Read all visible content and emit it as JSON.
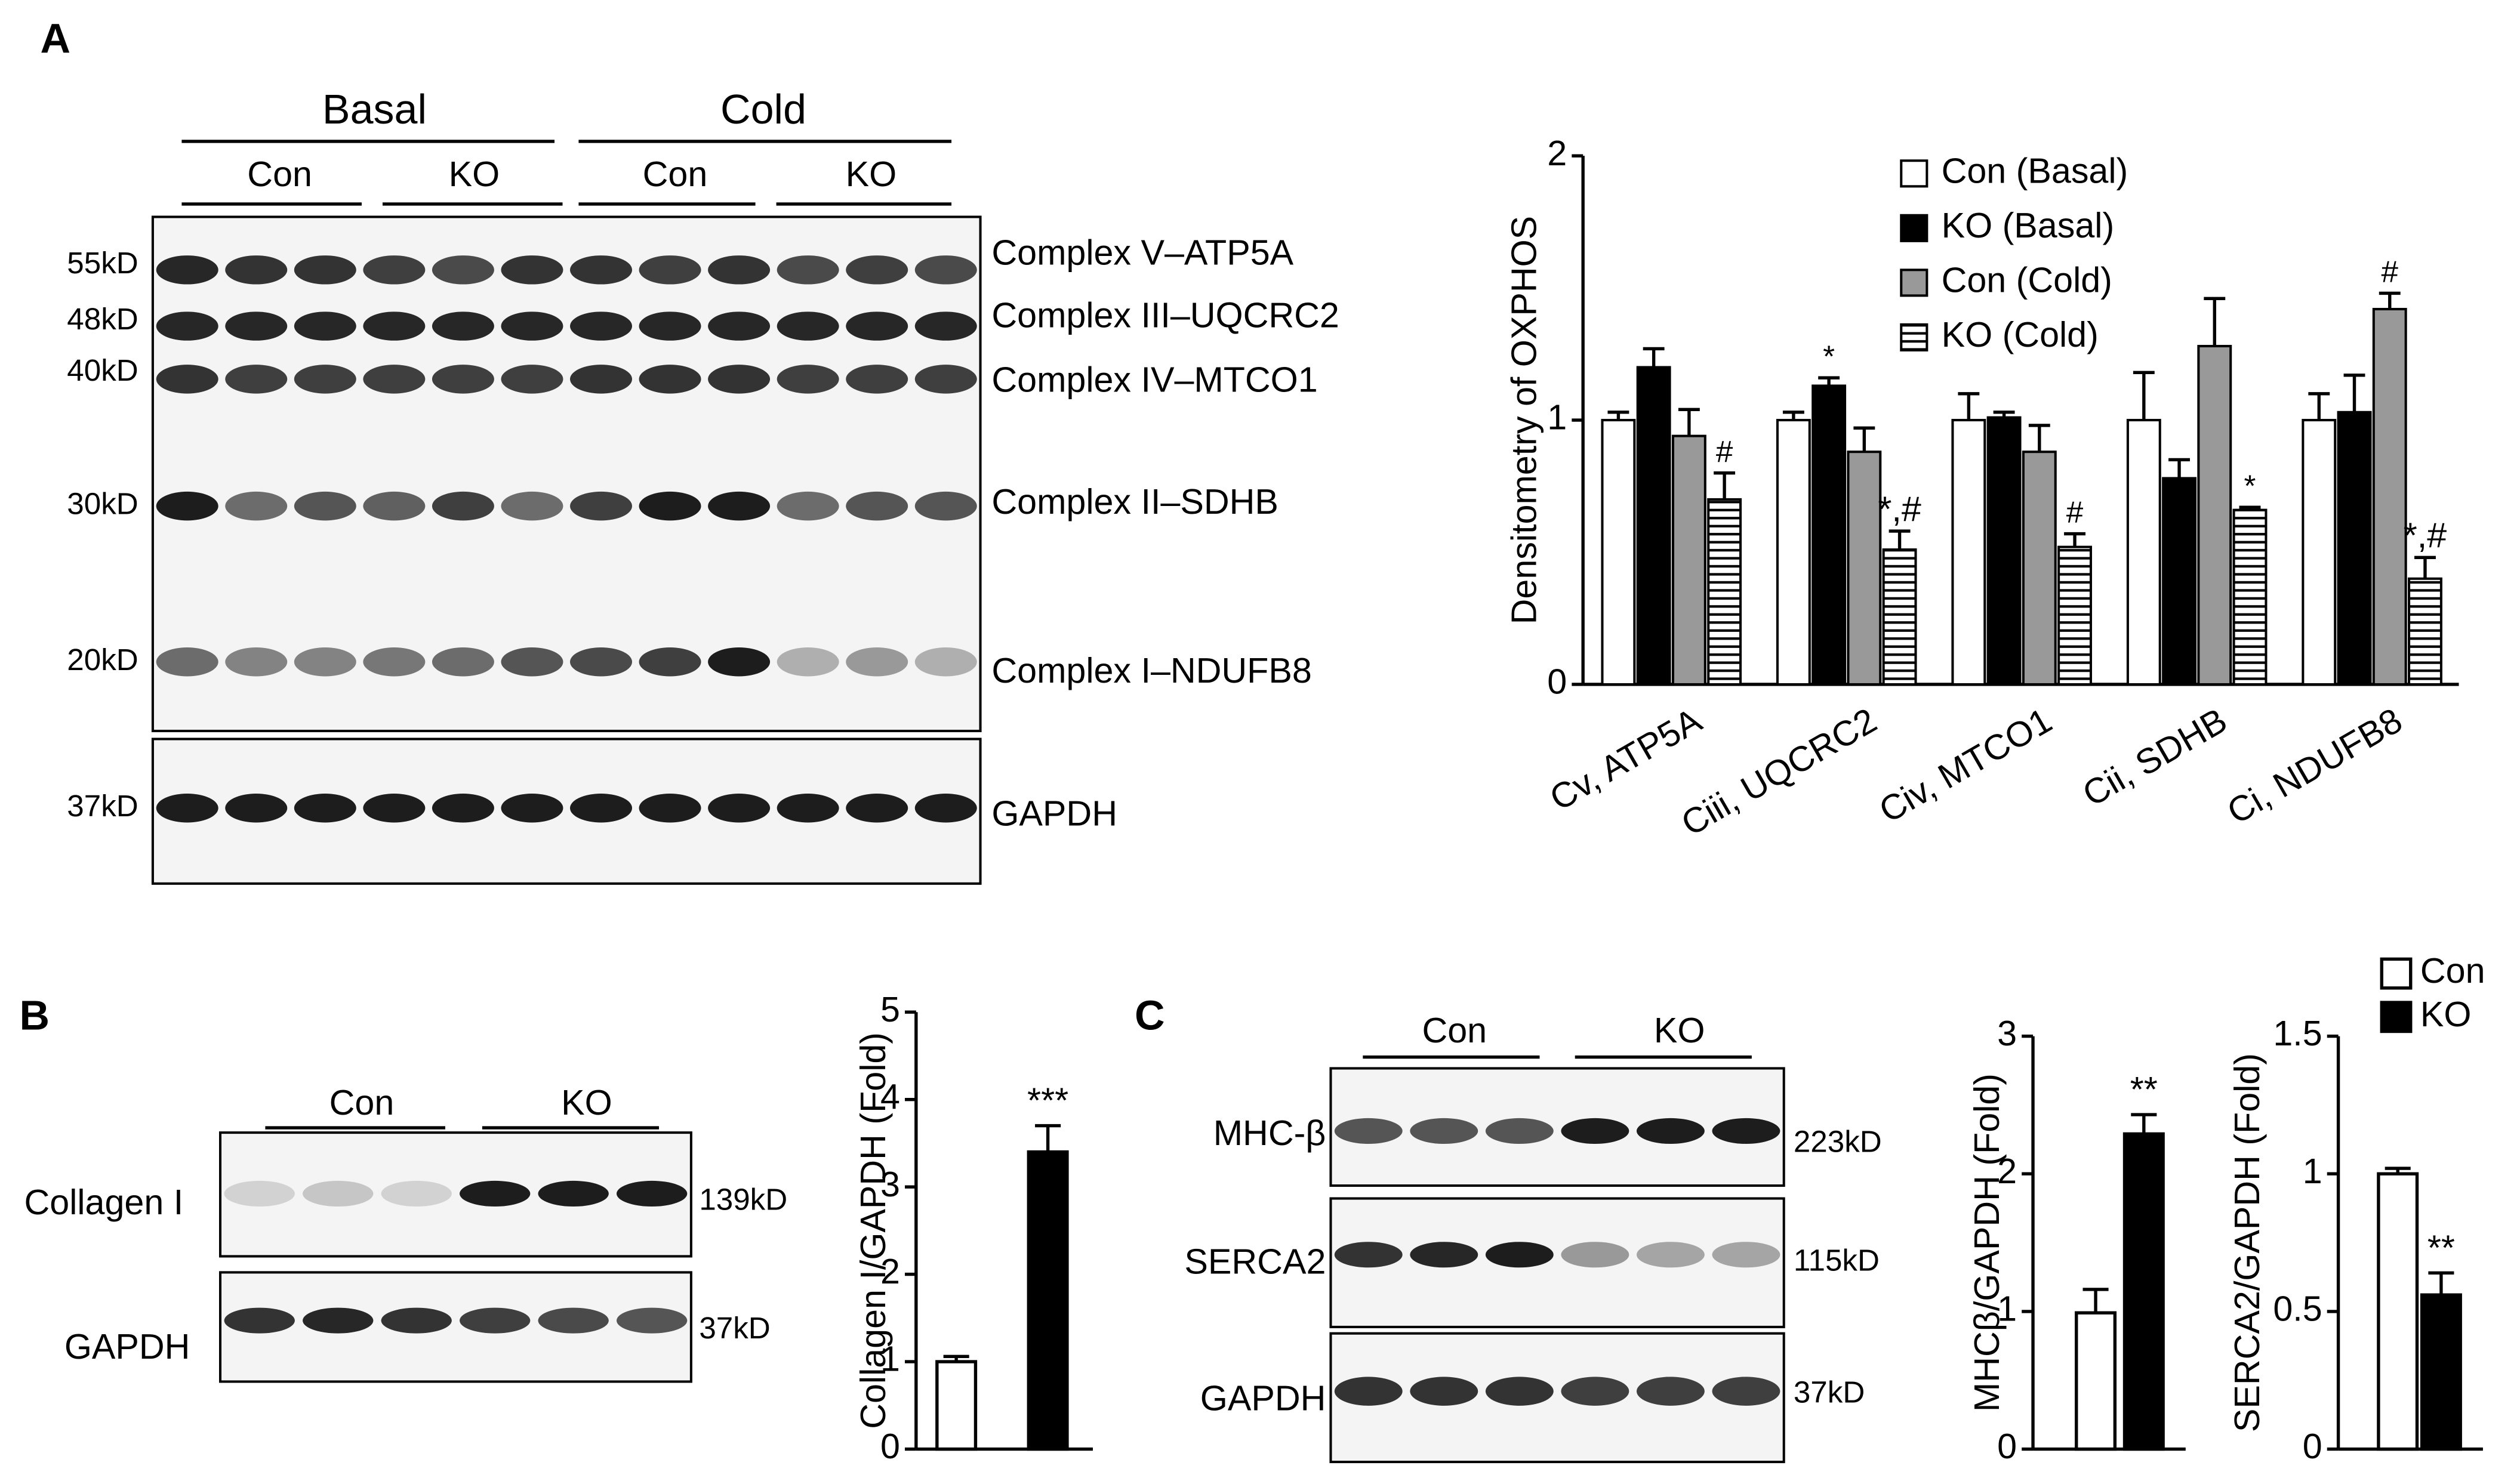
{
  "panel_labels": [
    "A",
    "B",
    "C"
  ],
  "blot_a": {
    "groups": [
      "Basal",
      "Cold"
    ],
    "subgroups": [
      "Con",
      "KO",
      "Con",
      "KO"
    ],
    "markers": [
      "55kD",
      "48kD",
      "40kD",
      "30kD",
      "20kD",
      "37kD"
    ],
    "bands": [
      "Complex V–ATP5A",
      "Complex III–UQCRC2",
      "Complex IV–MTCO1",
      "Complex II–SDHB",
      "Complex I–NDUFB8",
      "GAPDH"
    ]
  },
  "blot_b": {
    "groups": [
      "Con",
      "KO"
    ],
    "rows": [
      "Collagen I",
      "GAPDH"
    ],
    "markers": [
      "139kD",
      "37kD"
    ]
  },
  "blot_c": {
    "groups": [
      "Con",
      "KO"
    ],
    "rows": [
      "MHC-β",
      "SERCA2",
      "GAPDH"
    ],
    "markers": [
      "223kD",
      "115kD",
      "37kD"
    ]
  },
  "chart_data": [
    {
      "type": "bar",
      "y_label": "Densitometry of OXPHOS",
      "categories": [
        "Cv, ATP5A",
        "Ciii, UQCRC2",
        "Civ, MTCO1",
        "Cii, SDHB",
        "Ci, NDUFB8"
      ],
      "ylim": [
        0,
        2
      ],
      "yticks": [
        0,
        1,
        2
      ],
      "legend": "top-right",
      "series": [
        {
          "name": "Con (Basal)",
          "color": "#ffffff",
          "values": [
            1,
            1,
            1,
            1,
            1
          ],
          "errors": [
            0.03,
            0.03,
            0.1,
            0.18,
            0.1
          ],
          "labels": [
            null,
            null,
            null,
            null,
            null
          ]
        },
        {
          "name": "KO (Basal)",
          "color": "#000000",
          "values": [
            1.2,
            1.13,
            1.01,
            0.78,
            1.03
          ],
          "errors": [
            0.07,
            0.03,
            0.02,
            0.07,
            0.14
          ],
          "labels": [
            null,
            "*",
            null,
            null,
            null
          ]
        },
        {
          "name": "Con (Cold)",
          "color": "#999999",
          "values": [
            0.94,
            0.88,
            0.88,
            1.28,
            1.42
          ],
          "errors": [
            0.1,
            0.09,
            0.1,
            0.18,
            0.06
          ],
          "labels": [
            null,
            null,
            null,
            null,
            "#"
          ]
        },
        {
          "name": "KO (Cold)",
          "color": "#ffffff",
          "hatch": "horizontal",
          "values": [
            0.7,
            0.51,
            0.52,
            0.66,
            0.4
          ],
          "errors": [
            0.1,
            0.07,
            0.05,
            0.01,
            0.08
          ],
          "labels": [
            "#",
            "*,#",
            "#",
            "*",
            "*,#"
          ]
        }
      ]
    },
    {
      "type": "bar",
      "y_label": "Collagen I/GAPDH (Fold)",
      "categories": [
        null,
        null
      ],
      "colors": [
        "#ffffff",
        "#000000"
      ],
      "values": [
        1,
        3.4
      ],
      "errors": [
        0.06,
        0.3
      ],
      "labels": [
        null,
        "***"
      ],
      "ylim": [
        0,
        5
      ],
      "yticks": [
        0,
        1,
        2,
        3,
        4,
        5
      ]
    },
    {
      "type": "bar",
      "y_label": "MHCβ/GAPDH (Fold)",
      "categories": [
        null,
        null
      ],
      "colors": [
        "#ffffff",
        "#000000"
      ],
      "values": [
        0.99,
        2.29
      ],
      "errors": [
        0.17,
        0.14
      ],
      "labels": [
        null,
        "**"
      ],
      "ylim": [
        0,
        3
      ],
      "yticks": [
        0,
        1,
        2,
        3
      ]
    },
    {
      "type": "bar",
      "y_label": "SERCA2/GAPDH (Fold)",
      "categories": [
        null,
        null
      ],
      "colors": [
        "#ffffff",
        "#000000"
      ],
      "values": [
        1,
        0.56
      ],
      "errors": [
        0.02,
        0.08
      ],
      "labels": [
        null,
        "**"
      ],
      "ylim": [
        0,
        1.5
      ],
      "yticks": [
        0,
        0.5,
        1,
        1.5
      ],
      "legend_entries": [
        {
          "name": "Con",
          "color": "#ffffff"
        },
        {
          "name": "KO",
          "color": "#000000"
        }
      ]
    }
  ]
}
